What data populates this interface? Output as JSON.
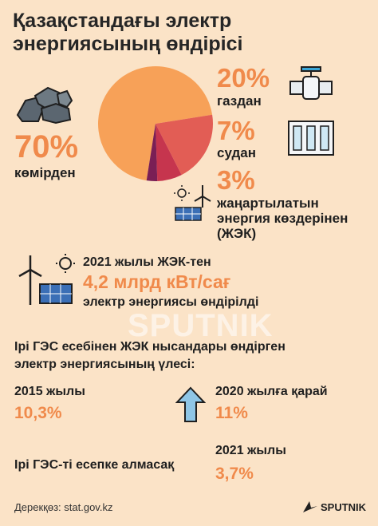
{
  "title": "Қазақстандағы электр энергиясының өндірісі",
  "colors": {
    "background": "#fbe3c7",
    "accent": "#f08a4b",
    "coal": "#f7a158",
    "gas": "#e25d55",
    "hydro": "#c6354e",
    "renewable": "#7a1f55"
  },
  "chart_data": {
    "type": "pie",
    "series": [
      {
        "name": "көмірден",
        "value": 70,
        "label": "70%"
      },
      {
        "name": "газдан",
        "value": 20,
        "label": "20%"
      },
      {
        "name": "судан",
        "value": 7,
        "label": "7%"
      },
      {
        "name": "жаңартылатын энергия көздерінен (ЖЭК)",
        "value": 3,
        "label": "3%"
      }
    ]
  },
  "renewables": {
    "line1": "2021 жылы ЖЭК-тен",
    "amount": "4,2 млрд  кВт/сағ",
    "line3": "электр энергиясы өндірілді"
  },
  "share": {
    "heading_line1": "Ірі ГЭС есебінен ЖЭК нысандары өндірген",
    "heading_line2": "электр энергиясының үлесі:",
    "y2015_label": "2015 жылы",
    "y2015_value": "10,3%",
    "y2020_label": "2020 жылға қарай",
    "y2020_value": "11%",
    "excl_label": "Ірі ГЭС-ті есепке алмасақ",
    "y2021_label": "2021 жылы",
    "y2021_value": "3,7%"
  },
  "icons": {
    "coal": "coal-icon",
    "gas": "gas-valve-icon",
    "hydro": "dam-icon",
    "renewable": "solar-wind-icon",
    "arrow": "arrow-up-icon"
  },
  "source": "Дерекқөз: stat.gov.kz",
  "watermark": "SPUTNIK",
  "logo_text": "SPUTNIK"
}
